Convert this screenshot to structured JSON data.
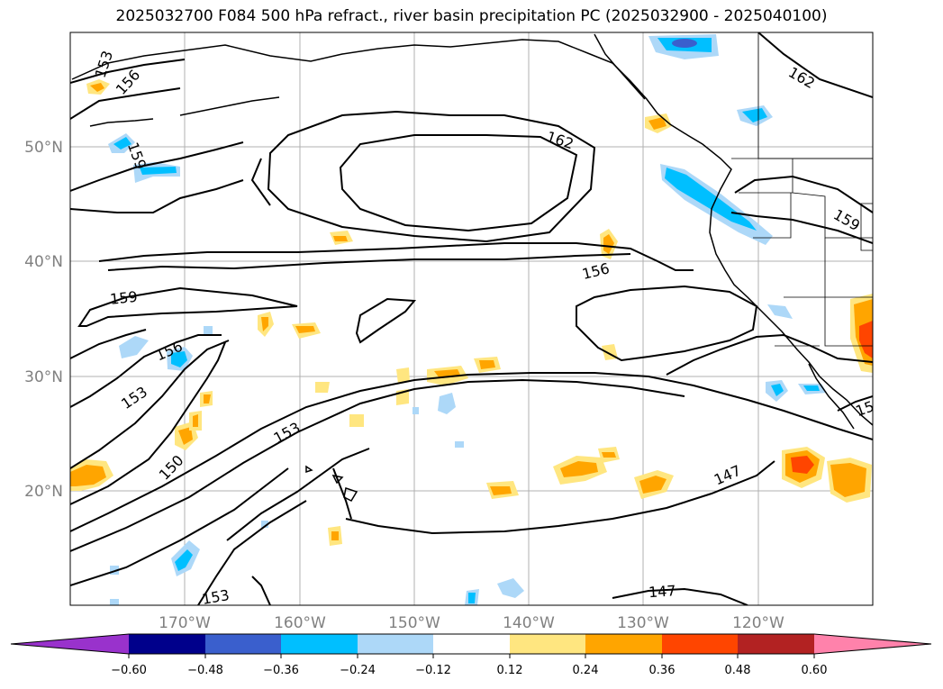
{
  "title": "2025032700 F084 500 hPa refract., river basin precipitation PC (2025032900 - 2025040100)",
  "map": {
    "lon_labels": [
      "170°W",
      "160°W",
      "150°W",
      "140°W",
      "130°W",
      "120°W"
    ],
    "lat_labels": [
      "50°N",
      "40°N",
      "30°N",
      "20°N"
    ],
    "contour_labels": [
      "153",
      "156",
      "159",
      "162",
      "162",
      "159",
      "156",
      "159",
      "156",
      "153",
      "150",
      "153",
      "147",
      "147",
      "153",
      "15"
    ]
  },
  "colorbar": {
    "ticks": [
      "−0.60",
      "−0.48",
      "−0.36",
      "−0.24",
      "−0.12",
      "0.12",
      "0.24",
      "0.36",
      "0.48",
      "0.60"
    ],
    "colors": [
      "#9932cc",
      "#00008b",
      "#3a5fcd",
      "#00bfff",
      "#add8f8",
      "#ffffff",
      "#ffe680",
      "#ffa500",
      "#ff4500",
      "#b22222",
      "#ff82ab"
    ]
  },
  "colors": {
    "contour": "#000000",
    "grid": "#b0b0b0",
    "axis_label": "#808080"
  }
}
